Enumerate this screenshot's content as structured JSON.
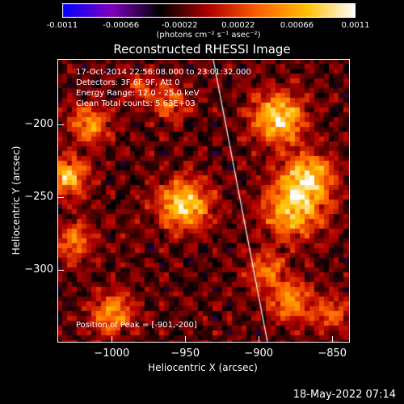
{
  "colorbar": {
    "ticks": [
      "-0.0011",
      "-0.00066",
      "-0.00022",
      "0.00022",
      "0.00066",
      "0.0011"
    ],
    "tick_values": [
      -0.0011,
      -0.00066,
      -0.00022,
      0.00022,
      0.00066,
      0.0011
    ],
    "range": [
      -0.0011,
      0.0011
    ],
    "unit_label": "(photons cm⁻² s⁻¹ asec⁻²)",
    "colors": [
      "#0000ff",
      "#8000c0",
      "#000000",
      "#b00000",
      "#ff6000",
      "#ffc000",
      "#ffffff"
    ]
  },
  "chart_data": {
    "type": "heatmap",
    "title": "Reconstructed RHESSI Image",
    "xlabel": "Heliocentric X (arcsec)",
    "ylabel": "Heliocentric Y (arcsec)",
    "xlim": [
      -1037,
      -838
    ],
    "ylim": [
      -350,
      -155
    ],
    "xticks": [
      -1000,
      -950,
      -900,
      -850
    ],
    "yticks": [
      -200,
      -250,
      -300
    ],
    "xtick_labels": [
      "−1000",
      "−950",
      "−900",
      "−850"
    ],
    "ytick_labels": [
      "−200",
      "−250",
      "−300"
    ],
    "limb_line": [
      [
        -931,
        -155
      ],
      [
        -894,
        -350
      ]
    ],
    "peak": [
      -901,
      -200
    ],
    "sources": [
      {
        "x": -951,
        "y": -255,
        "r": 17,
        "amp": 1.0
      },
      {
        "x": -887,
        "y": -196,
        "r": 17,
        "amp": 1.0
      },
      {
        "x": -866,
        "y": -236,
        "r": 16,
        "amp": 0.9
      },
      {
        "x": -877,
        "y": -258,
        "r": 20,
        "amp": 0.85
      },
      {
        "x": -1030,
        "y": -236,
        "r": 13,
        "amp": 0.85
      },
      {
        "x": -1015,
        "y": -200,
        "r": 13,
        "amp": 0.7
      },
      {
        "x": -1025,
        "y": -280,
        "r": 12,
        "amp": 0.6
      },
      {
        "x": -1000,
        "y": -330,
        "r": 14,
        "amp": 0.7
      },
      {
        "x": -878,
        "y": -322,
        "r": 14,
        "amp": 0.7
      },
      {
        "x": -895,
        "y": -300,
        "r": 12,
        "amp": 0.6
      },
      {
        "x": -850,
        "y": -330,
        "r": 12,
        "amp": 0.5
      },
      {
        "x": -960,
        "y": -185,
        "r": 12,
        "amp": 0.5
      },
      {
        "x": -980,
        "y": -175,
        "r": 10,
        "amp": 0.4
      }
    ],
    "info_lines": [
      "17-Oct-2014 22:56:08.000 to 23:01:32.000",
      "Detectors: 3F 6F 9F, Att 0",
      "Energy Range: 12.0 - 25.0 keV",
      "Clean     Total counts: 5.63E+03"
    ],
    "peak_label": "Position of Peak = [-901,-200]"
  },
  "footer": {
    "timestamp": "18-May-2022 07:14"
  }
}
